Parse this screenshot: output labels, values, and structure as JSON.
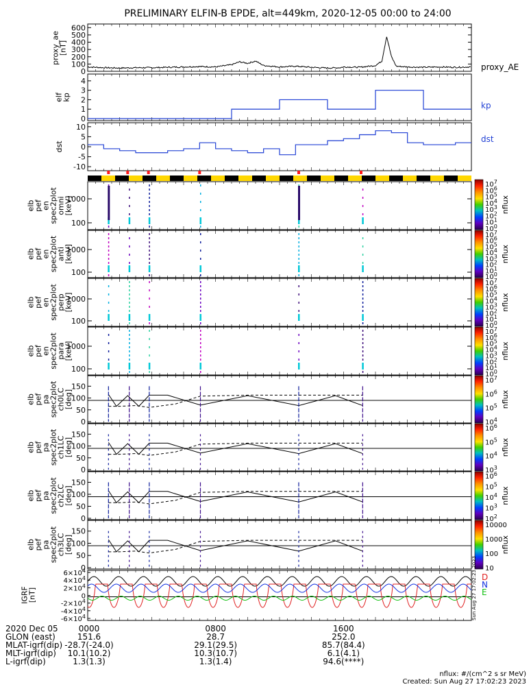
{
  "title": "PRELIMINARY ELFIN-B EPDE, alt=449km, 2020-12-05 00:00 to 24:00",
  "colors": {
    "line_blue": "#1f3fd4",
    "marker_red": "#ff1a1a",
    "bar_yellow": "#ffd700",
    "bar_black": "#000000",
    "trace_black": "#000000",
    "trace_red": "#e02020",
    "trace_green": "#10c010",
    "trace_blue": "#1030e0"
  },
  "colorbar_labels": {
    "cb1": [
      "10^7",
      "10^6",
      "10^5",
      "10^4",
      "10^3",
      "10^2",
      "10^1",
      "10^0"
    ],
    "cb2": [
      "10^7",
      "10^6",
      "10^5",
      "10^4",
      "10^3",
      "10^2",
      "10^1",
      "10^0"
    ],
    "cb3": [
      "10^7",
      "10^6",
      "10^5",
      "10^4",
      "10^3",
      "10^2",
      "10^1",
      "10^0"
    ],
    "cb4": [
      "10^7",
      "10^6",
      "10^5",
      "10^4",
      "10^3",
      "10^2",
      "10^1",
      "10^0"
    ],
    "cb5": [
      "10^7",
      "10^6",
      "10^5",
      "10^4"
    ],
    "cb6": [
      "10^6",
      "10^5",
      "10^4",
      "10^3"
    ],
    "cb7": [
      "10^6",
      "10^5",
      "10^4",
      "10^3",
      "10^2"
    ],
    "cb8": [
      "10000",
      "1000",
      "100",
      "10"
    ]
  },
  "colorbar_unit": "nflux",
  "footer": {
    "rows": [
      {
        "label": "2020 Dec 05",
        "v0": "0000",
        "v1": "0800",
        "v2": "1600"
      },
      {
        "label": "GLON (east)",
        "v0": "151.6",
        "v1": "28.7",
        "v2": "252.0"
      },
      {
        "label": "MLAT-igrf(dip)",
        "v0": "-28.7(-24.0)",
        "v1": "29.1(29.5)",
        "v2": "85.7(84.4)"
      },
      {
        "label": "MLT-igrf(dip)",
        "v0": "10.1(10.2)",
        "v1": "10.3(10.7)",
        "v2": "6.1(4.1)"
      },
      {
        "label": "L-igrf(dip)",
        "v0": "1.3(1.3)",
        "v1": "1.3(1.4)",
        "v2": "94.6(****)"
      }
    ],
    "units_note": "nflux: #/(cm^2 s sr MeV)",
    "created": "Created: Sun Aug 27 17:02:23 2023",
    "side_stamp": "Sun Aug 27 17:02:23 2023"
  },
  "chart_data": [
    {
      "type": "line",
      "panel": "proxy_ae",
      "ylabel": "proxy_ae [nT]",
      "legend": "proxy_AE",
      "ylim": [
        0,
        650
      ],
      "yticks": [
        "0",
        "100",
        "200",
        "300",
        "400",
        "500",
        "600"
      ],
      "x_hours": [
        0,
        1,
        2,
        3,
        4,
        5,
        6,
        7,
        8,
        9,
        9.5,
        10,
        10.5,
        11,
        12,
        13,
        14,
        15,
        15.8,
        16,
        17,
        18,
        18.4,
        18.7,
        19,
        19.3,
        20,
        21,
        22,
        23,
        24
      ],
      "values": [
        60,
        50,
        45,
        50,
        50,
        55,
        60,
        65,
        60,
        90,
        130,
        110,
        140,
        80,
        60,
        70,
        55,
        45,
        50,
        60,
        55,
        80,
        140,
        480,
        200,
        70,
        60,
        55,
        60,
        55,
        60
      ]
    },
    {
      "type": "line",
      "panel": "kp",
      "ylabel": "elf kp",
      "legend": "kp",
      "ylim": [
        0,
        4.5
      ],
      "yticks": [
        "0",
        "1",
        "2",
        "3",
        "4"
      ],
      "step_hours": [
        0,
        3,
        6,
        9,
        12,
        15,
        18,
        21,
        24
      ],
      "values": [
        0,
        0,
        0,
        1,
        2,
        1,
        3,
        1
      ]
    },
    {
      "type": "line",
      "panel": "dst",
      "ylabel": "dst",
      "legend": "dst",
      "ylim": [
        -12,
        12
      ],
      "yticks": [
        "10",
        "5",
        "0",
        "-5",
        "-10"
      ],
      "step_hours": [
        0,
        1,
        2,
        3,
        4,
        5,
        6,
        7,
        8,
        9,
        10,
        11,
        12,
        13,
        14,
        15,
        16,
        17,
        18,
        19,
        20,
        21,
        22,
        23,
        24
      ],
      "values": [
        1,
        -1,
        -2,
        -3,
        -3,
        -2,
        -1,
        2,
        -1,
        -2,
        -3,
        -1,
        -4,
        1,
        1,
        3,
        4,
        6,
        8,
        7,
        2,
        1,
        1,
        2
      ]
    },
    {
      "type": "heatmap",
      "panel": "timebar",
      "red_marker_hours": [
        1.3,
        2.5,
        3.8,
        7.0,
        13.2,
        17.1
      ]
    },
    {
      "type": "heatmap",
      "panel": "en_omni",
      "ylabel": "elb pef en spec2plot omni [keV]",
      "yticks": [
        "1000",
        "100"
      ],
      "burst_hours": [
        1.3,
        2.6,
        3.85,
        7.05,
        13.2,
        17.2
      ]
    },
    {
      "type": "heatmap",
      "panel": "en_anti",
      "ylabel": "elb pef en spec2plot anti [keV]",
      "yticks": [
        "1000",
        "100"
      ],
      "burst_hours": [
        1.3,
        2.6,
        3.85,
        7.05,
        13.2,
        17.2
      ]
    },
    {
      "type": "heatmap",
      "panel": "en_perp",
      "ylabel": "elb pef en spec2plot perp [keV]",
      "yticks": [
        "1000",
        "100"
      ],
      "burst_hours": [
        1.3,
        2.6,
        3.85,
        7.05,
        13.2,
        17.2
      ]
    },
    {
      "type": "heatmap",
      "panel": "en_para",
      "ylabel": "elb pef en spec2plot para [keV]",
      "yticks": [
        "1000",
        "100"
      ],
      "burst_hours": [
        1.3,
        2.6,
        3.85,
        7.05,
        13.2,
        17.2
      ]
    },
    {
      "type": "heatmap",
      "panel": "pa_ch0",
      "ylabel": "elb pef pa spec2plot ch0LC [deg]",
      "yticks": [
        "150",
        "100",
        "50",
        "0"
      ]
    },
    {
      "type": "heatmap",
      "panel": "pa_ch1",
      "ylabel": "elb pef pa spec2plot ch1LC [deg]",
      "yticks": [
        "150",
        "100",
        "50",
        "0"
      ]
    },
    {
      "type": "heatmap",
      "panel": "pa_ch2",
      "ylabel": "elb pef pa spec2plot ch2LC [deg]",
      "yticks": [
        "150",
        "100",
        "50",
        "0"
      ]
    },
    {
      "type": "heatmap",
      "panel": "pa_ch3",
      "ylabel": "elb pef pa spec2plot ch3LC [deg]",
      "yticks": [
        "150",
        "100",
        "50",
        "0"
      ]
    },
    {
      "type": "line",
      "panel": "igrf",
      "ylabel": "IGRF [nT]",
      "yticks": [
        "6×10^4",
        "4×10^4",
        "2×10^4",
        "0",
        "-2×10^4",
        "-4×10^4",
        "-6×10^4"
      ],
      "legend": [
        "D",
        "N",
        "E"
      ]
    }
  ]
}
